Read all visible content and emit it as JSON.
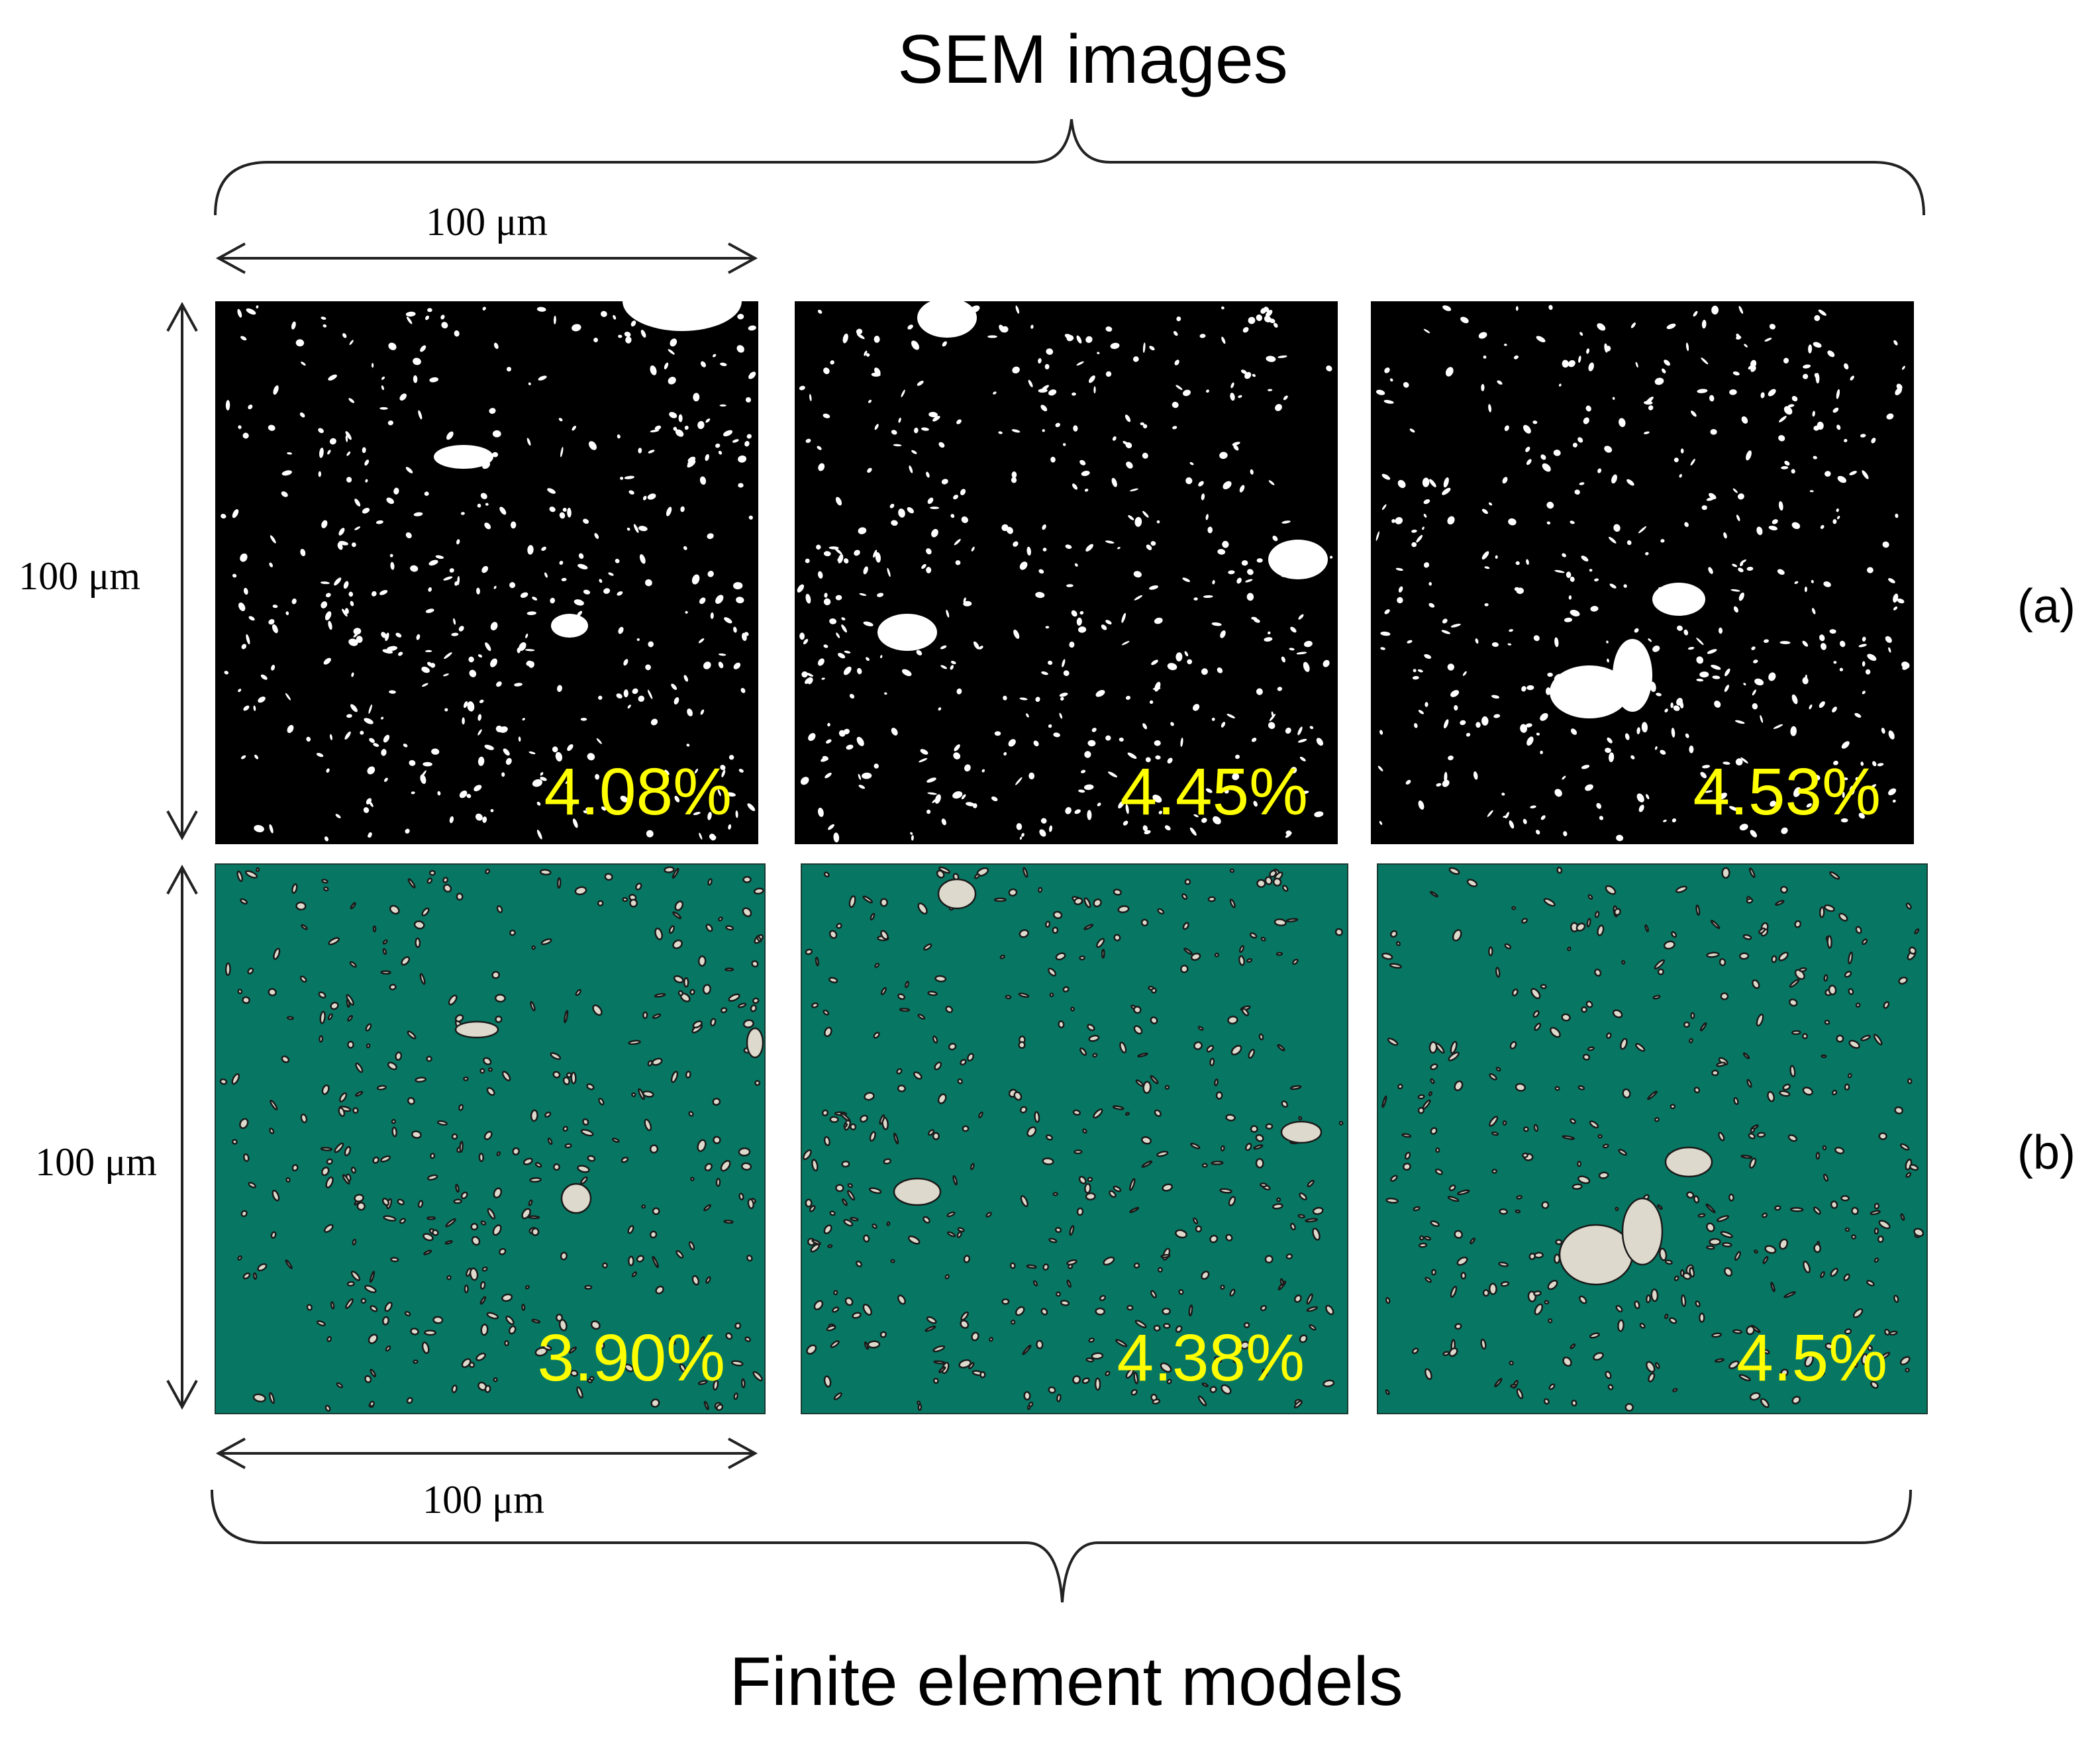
{
  "figure": {
    "top_title": "SEM images",
    "bottom_title": "Finite element models",
    "scale_label": "100 μm",
    "row_labels": [
      "(a)",
      "(b)"
    ],
    "sem_fractions": [
      "4.08%",
      "4.45%",
      "4.53%"
    ],
    "fe_fractions": [
      "3.90%",
      "4.38%",
      "4.5%"
    ],
    "colors": {
      "sem_background": "#000000",
      "sem_particles": "#ffffff",
      "fe_background": "#077763",
      "fe_particles": "#ddd9cc",
      "fraction_text": "#ffff00"
    }
  }
}
